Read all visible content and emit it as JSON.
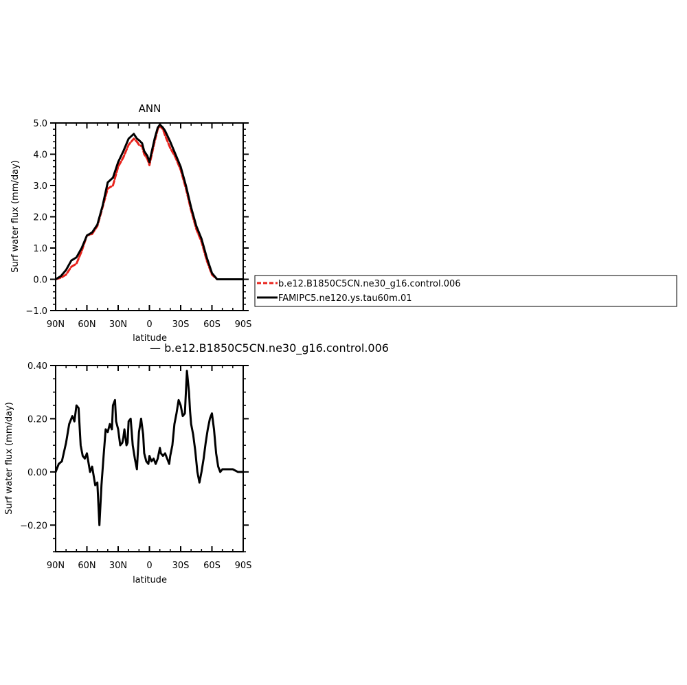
{
  "chart_data": [
    {
      "type": "line",
      "title": "ANN",
      "xlabel": "latitude",
      "ylabel": "Surf water flux (mm/day)",
      "xlim": [
        90,
        -90
      ],
      "ylim": [
        -1.0,
        5.0
      ],
      "x_ticks": [
        90,
        60,
        30,
        0,
        -30,
        -60,
        -90
      ],
      "x_tick_labels": [
        "90N",
        "60N",
        "30N",
        "0",
        "30S",
        "60S",
        "90S"
      ],
      "y_ticks": [
        -1.0,
        0.0,
        1.0,
        2.0,
        3.0,
        4.0,
        5.0
      ],
      "y_tick_labels": [
        "−1.0",
        "0.0",
        "1.0",
        "2.0",
        "3.0",
        "4.0",
        "5.0"
      ],
      "legend_position": "right",
      "series": [
        {
          "name": "b.e12.B1850C5CN.ne30_g16.control.006",
          "color": "#e8221b",
          "style": "dashed",
          "x": [
            90,
            85,
            80,
            75,
            70,
            65,
            60,
            55,
            50,
            45,
            40,
            35,
            30,
            25,
            20,
            15,
            12,
            10,
            7,
            5,
            2,
            0,
            -2,
            -5,
            -8,
            -10,
            -13,
            -15,
            -20,
            -25,
            -30,
            -35,
            -40,
            -45,
            -50,
            -55,
            -60,
            -65,
            -70,
            -75,
            -80,
            -85,
            -90
          ],
          "y": [
            0.0,
            0.05,
            0.15,
            0.4,
            0.5,
            0.9,
            1.4,
            1.45,
            1.7,
            2.3,
            2.9,
            3.0,
            3.6,
            3.9,
            4.3,
            4.5,
            4.4,
            4.3,
            4.25,
            4.0,
            3.85,
            3.65,
            3.95,
            4.4,
            4.8,
            4.9,
            4.8,
            4.6,
            4.2,
            3.9,
            3.5,
            2.9,
            2.2,
            1.6,
            1.2,
            0.6,
            0.15,
            0.0,
            0.0,
            0.0,
            0.0,
            0.0,
            0.0
          ]
        },
        {
          "name": "FAMIPC5.ne120.ys.tau60m.01",
          "color": "#000000",
          "style": "solid",
          "x": [
            90,
            85,
            80,
            75,
            70,
            65,
            60,
            55,
            50,
            45,
            40,
            35,
            30,
            25,
            20,
            15,
            12,
            10,
            7,
            5,
            2,
            0,
            -2,
            -5,
            -8,
            -10,
            -13,
            -15,
            -20,
            -25,
            -30,
            -35,
            -40,
            -45,
            -50,
            -55,
            -60,
            -65,
            -70,
            -75,
            -80,
            -85,
            -90
          ],
          "y": [
            0.0,
            0.1,
            0.3,
            0.6,
            0.7,
            1.0,
            1.4,
            1.5,
            1.75,
            2.35,
            3.1,
            3.25,
            3.75,
            4.1,
            4.5,
            4.65,
            4.5,
            4.45,
            4.35,
            4.1,
            3.95,
            3.75,
            4.05,
            4.5,
            4.85,
            4.95,
            4.85,
            4.75,
            4.4,
            4.0,
            3.6,
            3.0,
            2.3,
            1.7,
            1.3,
            0.7,
            0.2,
            0.0,
            0.0,
            0.0,
            0.0,
            0.0,
            0.0
          ]
        }
      ]
    },
    {
      "type": "line",
      "title": "— b.e12.B1850C5CN.ne30_g16.control.006",
      "xlabel": "latitude",
      "ylabel": "Surf water flux (mm/day)",
      "xlim": [
        90,
        -90
      ],
      "ylim": [
        -0.3,
        0.4
      ],
      "x_ticks": [
        90,
        60,
        30,
        0,
        -30,
        -60,
        -90
      ],
      "x_tick_labels": [
        "90N",
        "60N",
        "30N",
        "0",
        "30S",
        "60S",
        "90S"
      ],
      "y_ticks": [
        -0.2,
        0.0,
        0.2,
        0.4
      ],
      "y_tick_labels": [
        "−0.20",
        "0.00",
        "0.20",
        "0.40"
      ],
      "series": [
        {
          "color": "#000000",
          "style": "solid",
          "x": [
            90,
            87,
            84,
            80,
            77,
            74,
            72,
            70,
            68,
            66,
            64,
            62,
            60,
            57,
            55,
            52,
            50,
            48,
            46,
            44,
            42,
            40,
            38,
            36,
            35,
            33,
            32,
            30,
            28,
            26,
            25,
            24,
            22,
            21,
            20,
            18,
            16,
            14,
            12,
            10,
            8,
            6,
            5,
            3,
            1,
            0,
            -2,
            -4,
            -6,
            -8,
            -10,
            -11,
            -13,
            -15,
            -17,
            -19,
            -20,
            -22,
            -24,
            -26,
            -28,
            -30,
            -32,
            -34,
            -36,
            -38,
            -39,
            -40,
            -42,
            -44,
            -46,
            -48,
            -50,
            -52,
            -54,
            -56,
            -58,
            -60,
            -62,
            -64,
            -66,
            -68,
            -70,
            -72,
            -75,
            -80,
            -85,
            -90
          ],
          "y": [
            0.0,
            0.03,
            0.04,
            0.11,
            0.18,
            0.21,
            0.19,
            0.25,
            0.24,
            0.1,
            0.06,
            0.05,
            0.07,
            0.0,
            0.02,
            -0.05,
            -0.04,
            -0.2,
            -0.05,
            0.06,
            0.16,
            0.15,
            0.18,
            0.16,
            0.25,
            0.27,
            0.19,
            0.16,
            0.1,
            0.11,
            0.13,
            0.16,
            0.1,
            0.11,
            0.19,
            0.2,
            0.1,
            0.05,
            0.01,
            0.15,
            0.2,
            0.14,
            0.07,
            0.04,
            0.03,
            0.06,
            0.04,
            0.05,
            0.03,
            0.05,
            0.09,
            0.07,
            0.06,
            0.07,
            0.05,
            0.03,
            0.06,
            0.1,
            0.18,
            0.22,
            0.27,
            0.25,
            0.21,
            0.22,
            0.38,
            0.3,
            0.23,
            0.18,
            0.14,
            0.08,
            0.0,
            -0.04,
            0.0,
            0.05,
            0.11,
            0.16,
            0.2,
            0.22,
            0.16,
            0.07,
            0.02,
            0.0,
            0.01,
            0.01,
            0.01,
            0.01,
            0.0,
            0.0
          ]
        }
      ]
    }
  ]
}
